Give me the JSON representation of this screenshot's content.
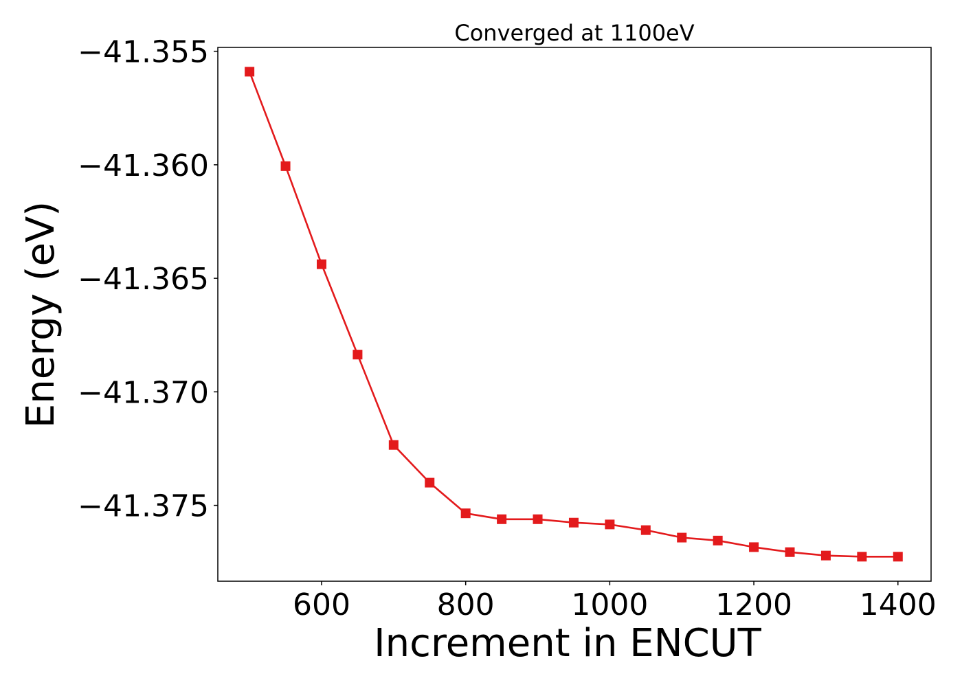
{
  "chart_data": {
    "type": "line",
    "title": "Converged at 1100eV",
    "xlabel": "Increment in ENCUT",
    "ylabel": "Energy (eV)",
    "xlim": [
      456,
      1446
    ],
    "ylim": [
      -41.37834,
      -41.35483
    ],
    "xticks": [
      600,
      800,
      1000,
      1200,
      1400
    ],
    "xtick_labels": [
      "600",
      "800",
      "1000",
      "1200",
      "1400"
    ],
    "yticks": [
      -41.355,
      -41.36,
      -41.365,
      -41.37,
      -41.375
    ],
    "ytick_labels": [
      "−41.355",
      "−41.360",
      "−41.365",
      "−41.370",
      "−41.375"
    ],
    "grid": false,
    "legend": "none",
    "series": [
      {
        "color": "#e31a1c",
        "marker": "square",
        "x": [
          500,
          550,
          600,
          650,
          700,
          750,
          800,
          850,
          900,
          950,
          1000,
          1050,
          1100,
          1150,
          1200,
          1250,
          1300,
          1350,
          1400
        ],
        "y": [
          -41.3559,
          -41.36006,
          -41.36438,
          -41.36836,
          -41.37234,
          -41.374,
          -41.37535,
          -41.37561,
          -41.37561,
          -41.37576,
          -41.37584,
          -41.37609,
          -41.37642,
          -41.37655,
          -41.37684,
          -41.37706,
          -41.37721,
          -41.37726,
          -41.37726
        ]
      }
    ]
  }
}
